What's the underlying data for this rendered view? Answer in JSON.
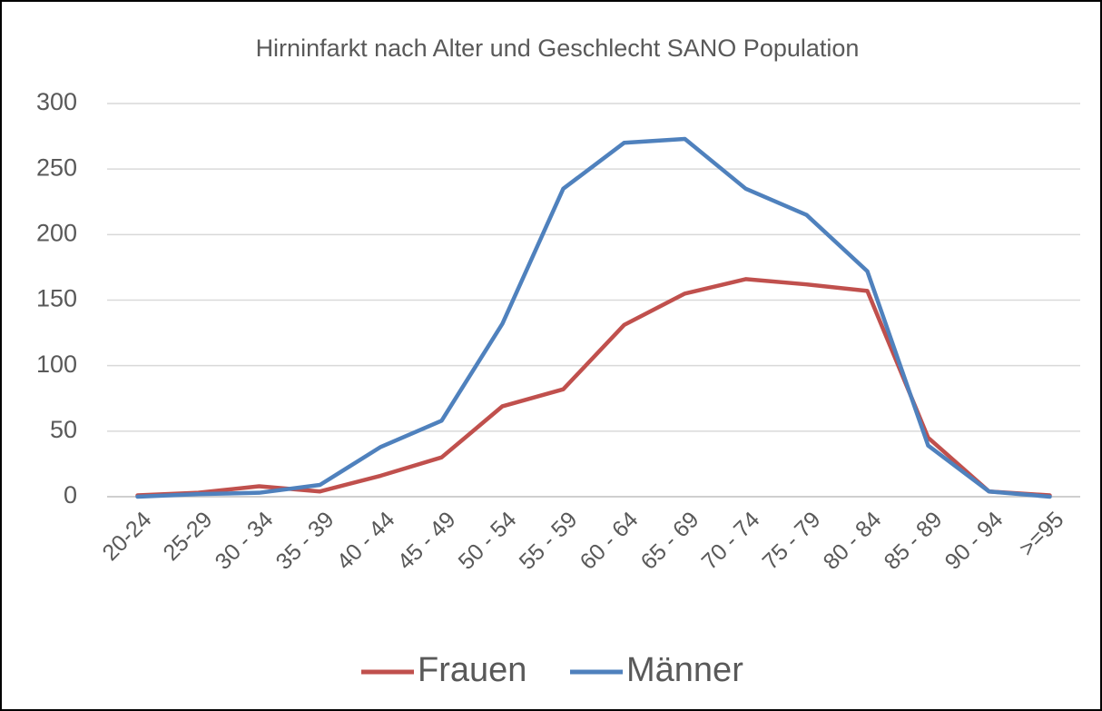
{
  "chart_data": {
    "type": "line",
    "title": "Hirninfarkt nach Alter und Geschlecht SANO Population",
    "categories": [
      "20-24",
      "25-29",
      "30 - 34",
      "35 - 39",
      "40 - 44",
      "45 - 49",
      "50 - 54",
      "55 - 59",
      "60 - 64",
      "65 - 69",
      "70 - 74",
      "75 - 79",
      "80 - 84",
      "85 - 89",
      "90 - 94",
      ">=95"
    ],
    "series": [
      {
        "name": "Frauen",
        "color": "#c0504d",
        "values": [
          1,
          3,
          8,
          4,
          16,
          30,
          69,
          82,
          131,
          155,
          166,
          162,
          157,
          45,
          4,
          1
        ]
      },
      {
        "name": "Männer",
        "color": "#4f81bd",
        "values": [
          0,
          2,
          3,
          9,
          38,
          58,
          132,
          235,
          270,
          273,
          235,
          215,
          172,
          39,
          4,
          0
        ]
      }
    ],
    "ylim": [
      0,
      300
    ],
    "yticks": [
      0,
      50,
      100,
      150,
      200,
      250,
      300
    ],
    "grid": true,
    "legend": "bottom"
  }
}
